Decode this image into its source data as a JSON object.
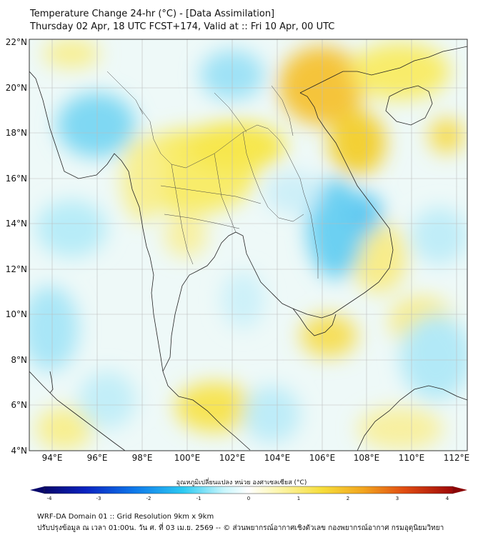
{
  "header": {
    "title_line1": "Temperature Change 24-hr (°C) - [Data Assimilation]",
    "title_line2": "Thursday 02 Apr, 18 UTC FCST+174, Valid at :: Fri 10 Apr, 00 UTC"
  },
  "map": {
    "lat_labels": [
      "22°N",
      "20°N",
      "18°N",
      "16°N",
      "14°N",
      "12°N",
      "10°N",
      "8°N",
      "6°N",
      "4°N"
    ],
    "lon_labels": [
      "94°E",
      "96°E",
      "98°E",
      "100°E",
      "102°E",
      "104°E",
      "106°E",
      "108°E",
      "110°E",
      "112°E"
    ]
  },
  "colorbar": {
    "label": "อุณหภูมิเปลี่ยนแปลง หน่วย องศาเซลเซียส (°C)",
    "ticks": [
      "-4",
      "-3",
      "-2",
      "-1",
      "0",
      "1",
      "2",
      "3",
      "4"
    ],
    "colors": [
      "#08086b",
      "#0a1fb5",
      "#0d5ee8",
      "#1aa3f0",
      "#36d3f2",
      "#9ff0fb",
      "#ffffff",
      "#fdf7b0",
      "#f8ec5a",
      "#f6cf2a",
      "#f1a01e",
      "#ea6a16",
      "#d92a10",
      "#a30a0a"
    ]
  },
  "footer": {
    "line1": "WRF-DA Domain 01 :: Grid Resolution 9km x 9km",
    "line2": "ปรับปรุงข้อมูล ณ เวลา 01:00น. วัน ศ. ที่ 03 เม.ย. 2569 -- © ส่วนพยากรณ์อากาศเชิงตัวเลข กองพยากรณ์อากาศ กรมอุตุนิยมวิทยา"
  }
}
